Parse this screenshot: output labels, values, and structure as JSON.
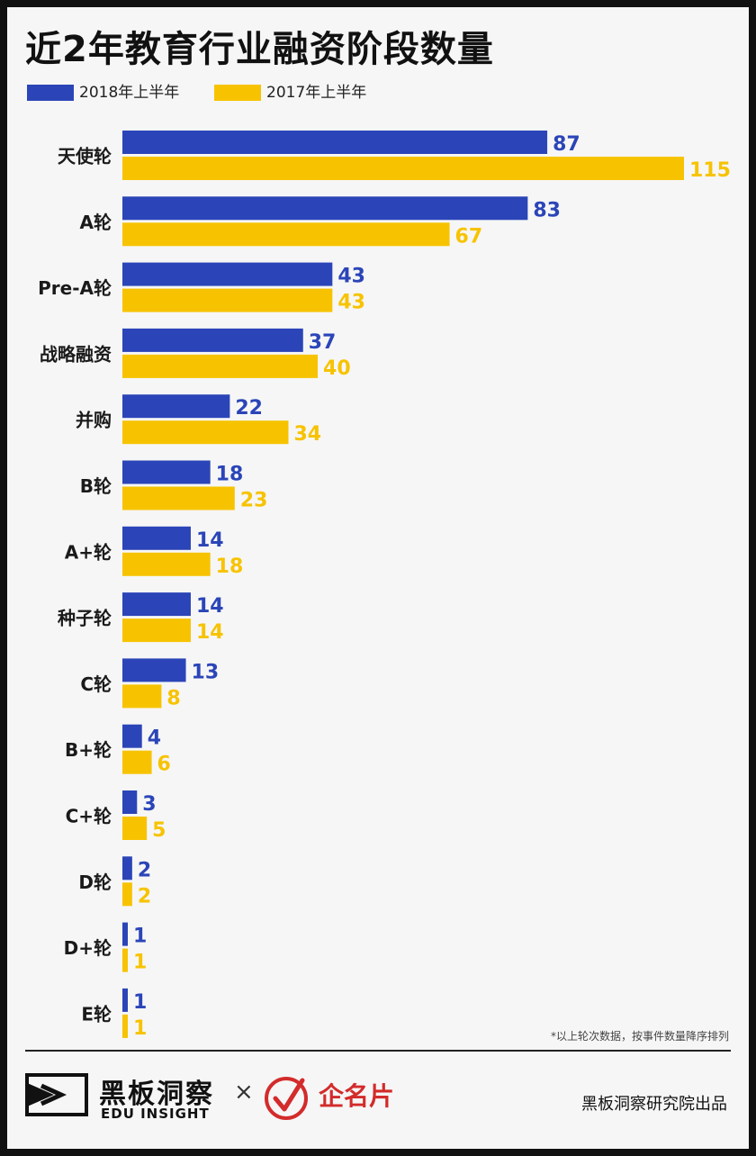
{
  "chart_data": {
    "type": "bar",
    "orientation": "horizontal",
    "title": "近2年教育行业融资阶段数量",
    "categories": [
      "天使轮",
      "A轮",
      "Pre-A轮",
      "战略融资",
      "并购",
      "B轮",
      "A+轮",
      "种子轮",
      "C轮",
      "B+轮",
      "C+轮",
      "D轮",
      "D+轮",
      "E轮"
    ],
    "series": [
      {
        "name": "2018年上半年",
        "color": "#2b45b8",
        "values": [
          87,
          83,
          43,
          37,
          22,
          18,
          14,
          14,
          13,
          4,
          3,
          2,
          1,
          1
        ]
      },
      {
        "name": "2017年上半年",
        "color": "#f7c300",
        "values": [
          115,
          67,
          43,
          40,
          34,
          23,
          18,
          14,
          8,
          6,
          5,
          2,
          1,
          1
        ]
      }
    ],
    "xlim": [
      0,
      115
    ],
    "grid": false,
    "legend": "top-left",
    "data_labels": true
  },
  "footnote": "*以上轮次数据，按事件数量降序排列",
  "brand": {
    "name_cn": "黑板洞察",
    "name_en": "EDU INSIGHT",
    "times": "×",
    "partner": "企名片",
    "credit": "黑板洞察研究院出品"
  },
  "colors": {
    "blue": "#2b45b8",
    "yellow": "#f7c300",
    "partner_red": "#d32b2b"
  },
  "icons": {
    "brand_logo": "play-arrow-logo-icon",
    "partner_logo": "checkmark-circle-icon"
  }
}
